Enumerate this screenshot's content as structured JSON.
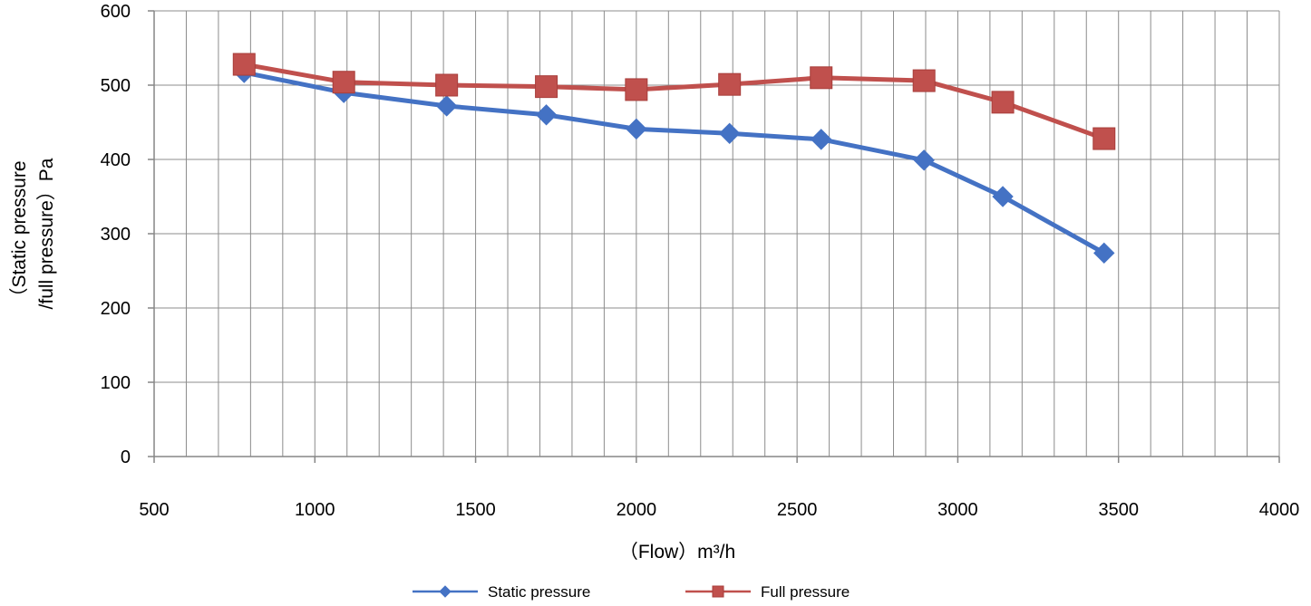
{
  "chart_data": {
    "type": "line",
    "xlabel": "（Flow）m³/h",
    "ylabel_lines": [
      "（Static pressure",
      "/full pressure）Pa"
    ],
    "xlim": [
      500,
      4000
    ],
    "ylim": [
      0,
      600
    ],
    "x_ticks": [
      500,
      1000,
      1500,
      2000,
      2500,
      3000,
      3500,
      4000
    ],
    "y_ticks": [
      0,
      100,
      200,
      300,
      400,
      500,
      600
    ],
    "x_minor_step": 100,
    "grid": true,
    "legend_position": "bottom",
    "series": [
      {
        "name": "Static pressure",
        "color": "#4472C4",
        "marker": "diamond",
        "points": [
          [
            780,
            517
          ],
          [
            1090,
            490
          ],
          [
            1410,
            472
          ],
          [
            1720,
            460
          ],
          [
            2000,
            441
          ],
          [
            2290,
            435
          ],
          [
            2575,
            427
          ],
          [
            2895,
            399
          ],
          [
            3140,
            350
          ],
          [
            3455,
            274
          ]
        ]
      },
      {
        "name": "Full pressure",
        "color": "#C0504D",
        "marker": "square",
        "points": [
          [
            780,
            528
          ],
          [
            1090,
            504
          ],
          [
            1410,
            500
          ],
          [
            1720,
            498
          ],
          [
            2000,
            494
          ],
          [
            2290,
            501
          ],
          [
            2575,
            510
          ],
          [
            2895,
            506
          ],
          [
            3140,
            477
          ],
          [
            3455,
            428
          ]
        ]
      }
    ]
  }
}
